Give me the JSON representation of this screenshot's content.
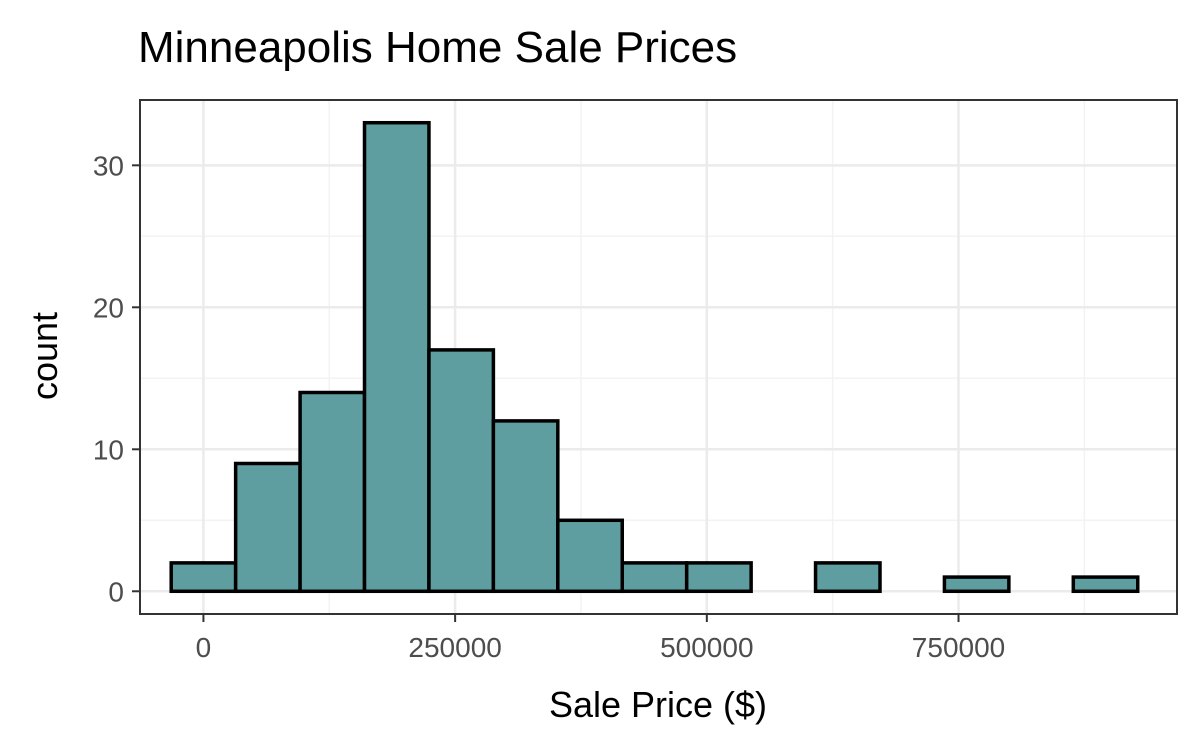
{
  "chart_data": {
    "type": "bar",
    "subtype": "histogram",
    "title": "Minneapolis Home Sale Prices",
    "xlabel": "Sale Price ($)",
    "ylabel": "count",
    "xlim": [
      -63000,
      967000
    ],
    "ylim": [
      -1.6,
      34.6
    ],
    "x_ticks": [
      0,
      250000,
      500000,
      750000
    ],
    "x_tick_labels": [
      "0",
      "250000",
      "500000",
      "750000"
    ],
    "y_ticks": [
      0,
      10,
      20,
      30
    ],
    "y_tick_labels": [
      "0",
      "10",
      "20",
      "30"
    ],
    "grid": true,
    "bin_width": 64000,
    "bins": [
      {
        "start": -32000,
        "end": 32000,
        "count": 2
      },
      {
        "start": 32000,
        "end": 96000,
        "count": 9
      },
      {
        "start": 96000,
        "end": 160000,
        "count": 14
      },
      {
        "start": 160000,
        "end": 224000,
        "count": 33
      },
      {
        "start": 224000,
        "end": 288000,
        "count": 17
      },
      {
        "start": 288000,
        "end": 352000,
        "count": 12
      },
      {
        "start": 352000,
        "end": 416000,
        "count": 5
      },
      {
        "start": 416000,
        "end": 480000,
        "count": 2
      },
      {
        "start": 480000,
        "end": 544000,
        "count": 2
      },
      {
        "start": 544000,
        "end": 608000,
        "count": 0
      },
      {
        "start": 608000,
        "end": 672000,
        "count": 2
      },
      {
        "start": 672000,
        "end": 736000,
        "count": 0
      },
      {
        "start": 736000,
        "end": 800000,
        "count": 1
      },
      {
        "start": 800000,
        "end": 864000,
        "count": 0
      },
      {
        "start": 864000,
        "end": 928000,
        "count": 1
      }
    ],
    "colors": {
      "fill": "#5f9ea0",
      "outline": "#000000",
      "grid_major": "#ebebeb",
      "grid_minor": "#f3f3f3",
      "panel_border": "#333333"
    }
  }
}
